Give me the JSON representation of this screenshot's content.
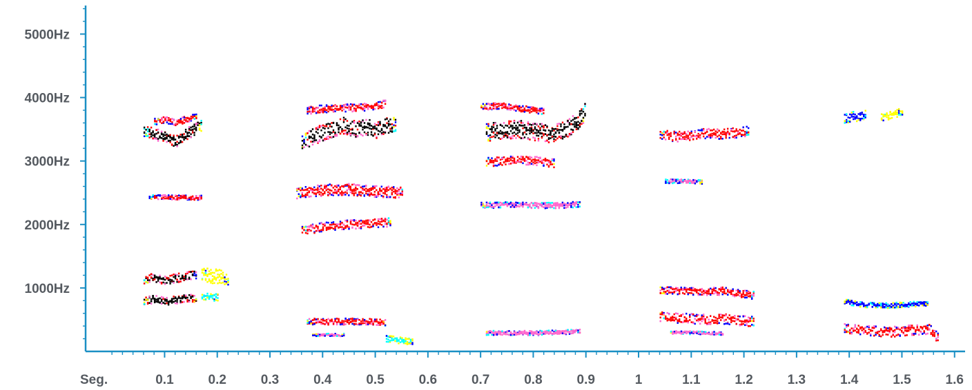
{
  "chart_data": {
    "type": "heatmap",
    "title": "",
    "xlabel": "Seg.",
    "ylabel": "",
    "xlim": [
      -0.05,
      1.62
    ],
    "ylim": [
      0,
      5450
    ],
    "grid": false,
    "x_tick_labels": [
      "0.1",
      "0.2",
      "0.3",
      "0.4",
      "0.5",
      "0.6",
      "0.7",
      "0.8",
      "0.9",
      "1",
      "1.1",
      "1.2",
      "1.3",
      "1.4",
      "1.5",
      "1.6"
    ],
    "x_tick_values": [
      0.1,
      0.2,
      0.3,
      0.4,
      0.5,
      0.6,
      0.7,
      0.8,
      0.9,
      1.0,
      1.1,
      1.2,
      1.3,
      1.4,
      1.5,
      1.6
    ],
    "y_tick_labels": [
      "1000Hz",
      "2000Hz",
      "3000Hz",
      "4000Hz",
      "5000Hz"
    ],
    "y_tick_values": [
      1000,
      2000,
      3000,
      4000,
      5000
    ],
    "intensity_scale": [
      "#ffff00",
      "#00ffff",
      "#0000ff",
      "#ff66cc",
      "#ff0000",
      "#000000"
    ],
    "series": [
      {
        "segment": [
          0.06,
          0.17
        ],
        "x": [
          0.06,
          0.08,
          0.1,
          0.12,
          0.14,
          0.16,
          0.17
        ],
        "y": [
          3480,
          3420,
          3380,
          3300,
          3420,
          3520,
          3560
        ],
        "spread": 90,
        "level": 5
      },
      {
        "segment": [
          0.08,
          0.16
        ],
        "x": [
          0.08,
          0.1,
          0.12,
          0.14,
          0.16
        ],
        "y": [
          3620,
          3650,
          3600,
          3660,
          3700
        ],
        "spread": 50,
        "level": 4
      },
      {
        "segment": [
          0.07,
          0.17
        ],
        "x": [
          0.07,
          0.17
        ],
        "y": [
          2430,
          2420
        ],
        "spread": 35,
        "level": 4
      },
      {
        "segment": [
          0.06,
          0.16
        ],
        "x": [
          0.06,
          0.08,
          0.1,
          0.12,
          0.14,
          0.16
        ],
        "y": [
          1130,
          1160,
          1120,
          1150,
          1180,
          1200
        ],
        "spread": 70,
        "level": 5
      },
      {
        "segment": [
          0.06,
          0.16
        ],
        "x": [
          0.06,
          0.08,
          0.1,
          0.12,
          0.14,
          0.16
        ],
        "y": [
          800,
          820,
          790,
          810,
          830,
          840
        ],
        "spread": 60,
        "level": 5
      },
      {
        "segment": [
          0.17,
          0.22
        ],
        "x": [
          0.17,
          0.2,
          0.22
        ],
        "y": [
          1200,
          1180,
          1150
        ],
        "spread": 120,
        "level": 0
      },
      {
        "segment": [
          0.17,
          0.2
        ],
        "x": [
          0.17,
          0.2
        ],
        "y": [
          850,
          860
        ],
        "spread": 60,
        "level": 1
      },
      {
        "segment": [
          0.36,
          0.54
        ],
        "x": [
          0.36,
          0.38,
          0.4,
          0.42,
          0.44,
          0.46,
          0.48,
          0.5,
          0.52,
          0.54
        ],
        "y": [
          3300,
          3380,
          3450,
          3500,
          3560,
          3500,
          3540,
          3480,
          3560,
          3600
        ],
        "spread": 130,
        "level": 5
      },
      {
        "segment": [
          0.37,
          0.52
        ],
        "x": [
          0.37,
          0.4,
          0.44,
          0.48,
          0.52
        ],
        "y": [
          3800,
          3820,
          3830,
          3850,
          3900
        ],
        "spread": 60,
        "level": 4
      },
      {
        "segment": [
          0.35,
          0.55
        ],
        "x": [
          0.35,
          0.4,
          0.45,
          0.5,
          0.55
        ],
        "y": [
          2500,
          2540,
          2550,
          2520,
          2500
        ],
        "spread": 90,
        "level": 4
      },
      {
        "segment": [
          0.36,
          0.53
        ],
        "x": [
          0.36,
          0.4,
          0.45,
          0.5,
          0.53
        ],
        "y": [
          1900,
          1960,
          2000,
          2020,
          2040
        ],
        "spread": 70,
        "level": 4
      },
      {
        "segment": [
          0.37,
          0.52
        ],
        "x": [
          0.37,
          0.4,
          0.45,
          0.5,
          0.52
        ],
        "y": [
          470,
          470,
          470,
          460,
          455
        ],
        "spread": 50,
        "level": 4
      },
      {
        "segment": [
          0.38,
          0.44
        ],
        "x": [
          0.38,
          0.44
        ],
        "y": [
          260,
          260
        ],
        "spread": 20,
        "level": 3
      },
      {
        "segment": [
          0.52,
          0.57
        ],
        "x": [
          0.52,
          0.57
        ],
        "y": [
          200,
          150
        ],
        "spread": 50,
        "level": 1
      },
      {
        "segment": [
          0.71,
          0.9
        ],
        "x": [
          0.71,
          0.74,
          0.77,
          0.8,
          0.83,
          0.86,
          0.88,
          0.9
        ],
        "y": [
          3450,
          3480,
          3500,
          3460,
          3430,
          3500,
          3600,
          3800
        ],
        "spread": 140,
        "level": 5
      },
      {
        "segment": [
          0.7,
          0.82
        ],
        "x": [
          0.7,
          0.74,
          0.78,
          0.82
        ],
        "y": [
          3850,
          3870,
          3820,
          3780
        ],
        "spread": 50,
        "level": 4
      },
      {
        "segment": [
          0.71,
          0.84
        ],
        "x": [
          0.71,
          0.74,
          0.77,
          0.8,
          0.84
        ],
        "y": [
          2980,
          3000,
          3020,
          3000,
          2960
        ],
        "spread": 70,
        "level": 4
      },
      {
        "segment": [
          0.7,
          0.89
        ],
        "x": [
          0.7,
          0.75,
          0.8,
          0.85,
          0.89
        ],
        "y": [
          2300,
          2310,
          2300,
          2300,
          2320
        ],
        "spread": 45,
        "level": 3
      },
      {
        "segment": [
          0.71,
          0.89
        ],
        "x": [
          0.71,
          0.75,
          0.8,
          0.85,
          0.89
        ],
        "y": [
          290,
          290,
          290,
          300,
          320
        ],
        "spread": 35,
        "level": 3
      },
      {
        "segment": [
          1.04,
          1.21
        ],
        "x": [
          1.04,
          1.07,
          1.1,
          1.13,
          1.16,
          1.19,
          1.21
        ],
        "y": [
          3420,
          3380,
          3400,
          3440,
          3420,
          3450,
          3480
        ],
        "spread": 80,
        "level": 4
      },
      {
        "segment": [
          1.05,
          1.12
        ],
        "x": [
          1.05,
          1.08,
          1.12
        ],
        "y": [
          2680,
          2680,
          2670
        ],
        "spread": 30,
        "level": 3
      },
      {
        "segment": [
          1.04,
          1.22
        ],
        "x": [
          1.04,
          1.08,
          1.12,
          1.16,
          1.2,
          1.22
        ],
        "y": [
          950,
          960,
          940,
          950,
          900,
          880
        ],
        "spread": 60,
        "level": 4
      },
      {
        "segment": [
          1.04,
          1.22
        ],
        "x": [
          1.04,
          1.08,
          1.12,
          1.16,
          1.2,
          1.22
        ],
        "y": [
          540,
          520,
          500,
          510,
          480,
          470
        ],
        "spread": 80,
        "level": 4
      },
      {
        "segment": [
          1.06,
          1.16
        ],
        "x": [
          1.06,
          1.16
        ],
        "y": [
          300,
          280
        ],
        "spread": 25,
        "level": 3
      },
      {
        "segment": [
          1.39,
          1.43
        ],
        "x": [
          1.39,
          1.41,
          1.43
        ],
        "y": [
          3680,
          3700,
          3720
        ],
        "spread": 80,
        "level": 2
      },
      {
        "segment": [
          1.46,
          1.5
        ],
        "x": [
          1.46,
          1.5
        ],
        "y": [
          3680,
          3780
        ],
        "spread": 60,
        "level": 0
      },
      {
        "segment": [
          1.39,
          1.55
        ],
        "x": [
          1.39,
          1.43,
          1.47,
          1.51,
          1.55
        ],
        "y": [
          780,
          730,
          720,
          740,
          760
        ],
        "spread": 40,
        "level": 2
      },
      {
        "segment": [
          1.39,
          1.57
        ],
        "x": [
          1.39,
          1.43,
          1.47,
          1.51,
          1.55,
          1.57
        ],
        "y": [
          360,
          330,
          300,
          330,
          350,
          200
        ],
        "spread": 80,
        "level": 4
      }
    ]
  }
}
